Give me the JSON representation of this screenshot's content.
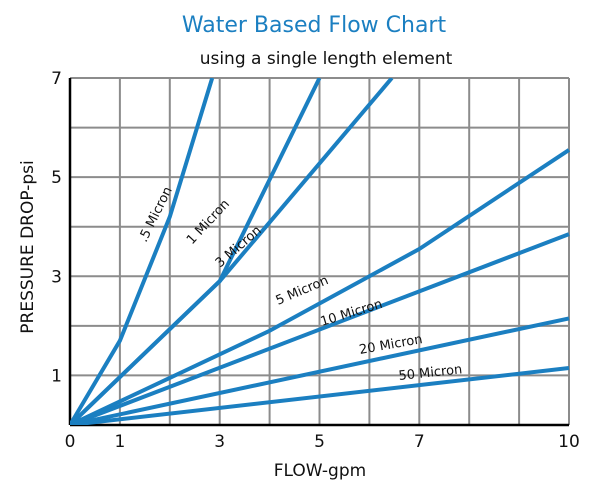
{
  "chart_data": {
    "type": "line",
    "title": "Water Based Flow Chart",
    "subtitle": "using a single length element",
    "xlabel": "FLOW-gpm",
    "ylabel": "PRESSURE DROP-psi",
    "xlim": [
      0,
      10
    ],
    "ylim": [
      0,
      7
    ],
    "x_ticks": [
      0,
      1,
      3,
      5,
      7,
      10
    ],
    "y_ticks": [
      1,
      3,
      5,
      7
    ],
    "grid": true,
    "line_color": "#1b7fc1",
    "series": [
      {
        "name": ".5 Micron",
        "points": [
          [
            0,
            0
          ],
          [
            1.0,
            1.7
          ],
          [
            2.0,
            4.2
          ],
          [
            2.85,
            7.0
          ]
        ]
      },
      {
        "name": "1 Micron",
        "points": [
          [
            0,
            0
          ],
          [
            3.0,
            2.9
          ],
          [
            5.0,
            7.0
          ]
        ]
      },
      {
        "name": "3 Micron",
        "points": [
          [
            0,
            0
          ],
          [
            3.0,
            2.9
          ],
          [
            6.45,
            7.0
          ]
        ]
      },
      {
        "name": "5 Micron",
        "points": [
          [
            0,
            0
          ],
          [
            4.0,
            1.9
          ],
          [
            7.0,
            3.55
          ],
          [
            10.0,
            5.55
          ]
        ]
      },
      {
        "name": "10 Micron",
        "points": [
          [
            0,
            0
          ],
          [
            10.0,
            3.85
          ]
        ]
      },
      {
        "name": "20 Micron",
        "points": [
          [
            0,
            0
          ],
          [
            10.0,
            2.15
          ]
        ]
      },
      {
        "name": "50 Micron",
        "points": [
          [
            0,
            0
          ],
          [
            10.0,
            1.15
          ]
        ]
      }
    ]
  }
}
